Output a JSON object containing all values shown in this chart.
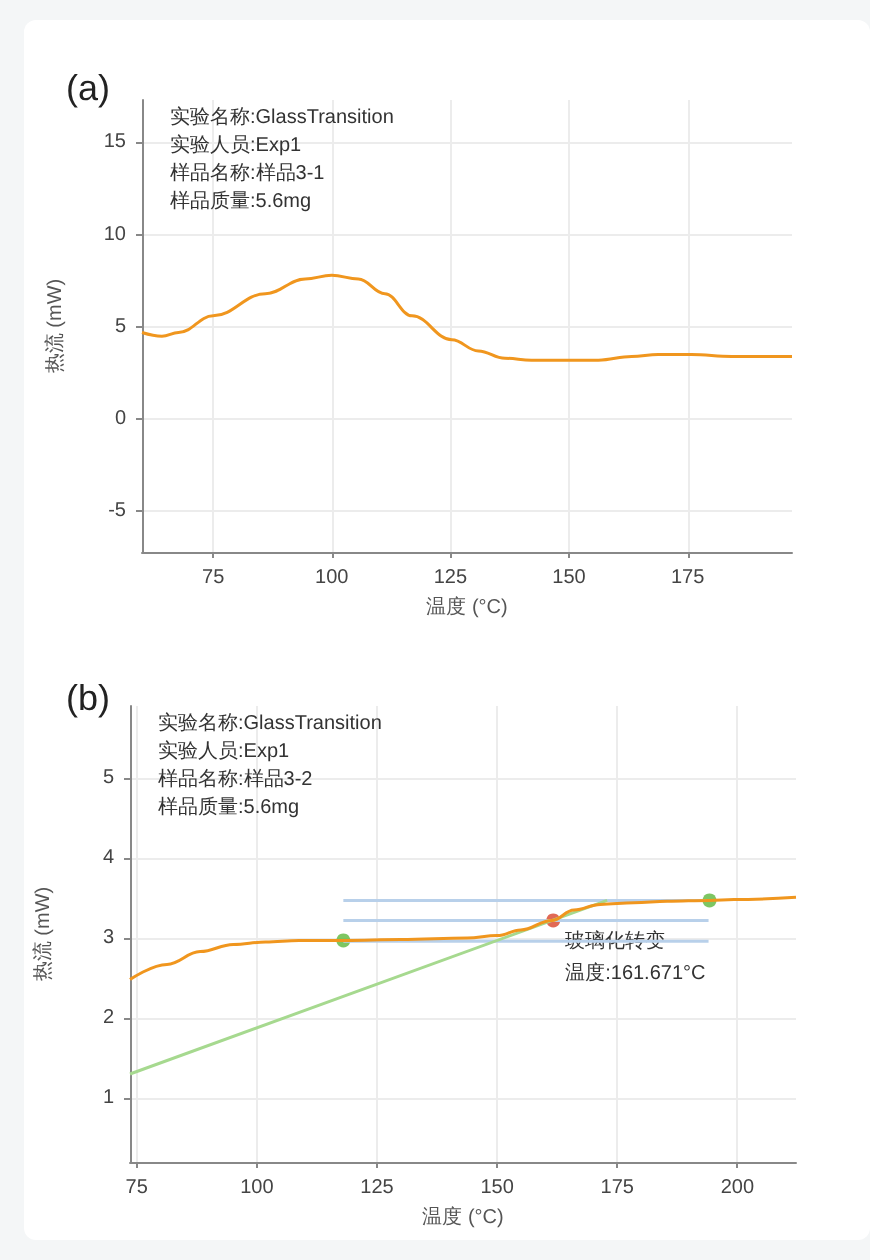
{
  "chart_data": [
    {
      "type": "line",
      "title": "(a)",
      "xlabel": "温度 (°C)",
      "ylabel": "热流 (mW)",
      "xlim": [
        60,
        197
      ],
      "ylim": [
        -7.2,
        17.3
      ],
      "xticks": [
        75,
        100,
        125,
        150,
        175
      ],
      "yticks": [
        -5,
        0,
        5,
        10,
        15
      ],
      "grid": true,
      "marker": "none",
      "annotations": [
        "实验名称:GlassTransition",
        "实验人员:Exp1",
        "样品名称:样品3-1",
        "样品质量:5.6mg"
      ],
      "series": [
        {
          "color": "#f0961e",
          "x": [
            60,
            64.2,
            67.7,
            75,
            86,
            94.4,
            100,
            105.6,
            111.2,
            116.9,
            125.3,
            130.9,
            136.5,
            142.1,
            149.2,
            156.2,
            163.2,
            168.8,
            175.8,
            184.3,
            197
          ],
          "values": [
            4.7,
            4.5,
            4.7,
            5.6,
            6.8,
            7.6,
            7.8,
            7.6,
            6.8,
            5.6,
            4.3,
            3.7,
            3.3,
            3.2,
            3.2,
            3.2,
            3.4,
            3.5,
            3.5,
            3.4,
            3.4
          ]
        }
      ]
    },
    {
      "type": "line",
      "title": "(b)",
      "xlabel": "温度 (°C)",
      "ylabel": "热流 (mW)",
      "xlim": [
        73.6,
        212.2
      ],
      "ylim": [
        0.2,
        5.9
      ],
      "xticks": [
        75,
        100,
        125,
        150,
        175,
        200
      ],
      "yticks": [
        1,
        2,
        3,
        4,
        5
      ],
      "grid": true,
      "marker": "none",
      "annotations": [
        "实验名称:GlassTransition",
        "实验人员:Exp1",
        "样品名称:样品3-2",
        "样品质量:5.6mg",
        {
          "text": "玻璃化转变",
          "x": 161.671,
          "y": 3.22
        },
        {
          "text": "温度:161.671°C",
          "x": 161.671,
          "y": 3.22
        }
      ],
      "series": [
        {
          "color": "#b8d0ea",
          "x": [
            118,
            194
          ],
          "values": [
            3.47,
            3.47
          ]
        },
        {
          "color": "#b8d0ea",
          "x": [
            118,
            194
          ],
          "values": [
            3.22,
            3.22
          ]
        },
        {
          "color": "#b8d0ea",
          "x": [
            118,
            194
          ],
          "values": [
            2.96,
            2.96
          ]
        },
        {
          "color": "#a6d98f",
          "x": [
            73.6,
            172.9
          ],
          "values": [
            1.3,
            3.47
          ]
        },
        {
          "color": "#f0961e",
          "x": [
            73.6,
            81.3,
            88.2,
            95.1,
            101.8,
            108.8,
            118.3,
            129.9,
            143.8,
            150,
            154.9,
            161.4,
            166,
            171.5,
            178.5,
            185.4,
            194.2,
            199.3,
            212.2
          ],
          "values": [
            2.48,
            2.67,
            2.83,
            2.92,
            2.95,
            2.97,
            2.97,
            2.98,
            3.0,
            3.03,
            3.1,
            3.22,
            3.35,
            3.42,
            3.44,
            3.46,
            3.47,
            3.48,
            3.51
          ]
        },
        {
          "type": "scatter",
          "marker": "circle",
          "colors": [
            "#5cb83c",
            "#d9442b",
            "#5cb83c"
          ],
          "x": [
            118,
            161.671,
            194.2
          ],
          "values": [
            2.97,
            3.22,
            3.47
          ]
        }
      ]
    }
  ]
}
